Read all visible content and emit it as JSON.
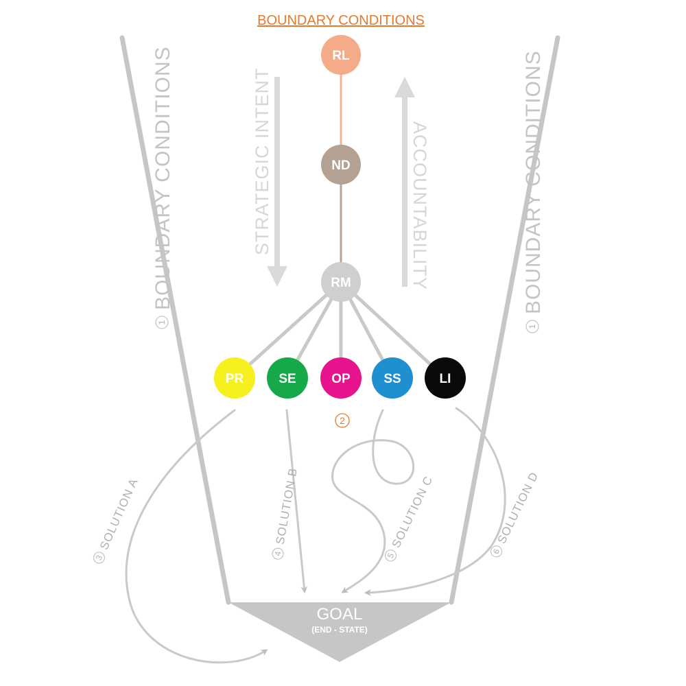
{
  "title": "BOUNDARY CONDITIONS",
  "side_labels": {
    "left": {
      "number": "1",
      "text": "BOUNDARY CONDITIONS"
    },
    "right": {
      "number": "1",
      "text": "BOUNDARY CONDITIONS"
    }
  },
  "arrows": {
    "down": "STRATEGIC INTENT",
    "up": "ACCOUNTABILITY"
  },
  "hierarchy": [
    {
      "label": "RL",
      "color": "#f4ab88"
    },
    {
      "label": "ND",
      "color": "#b3a193"
    },
    {
      "label": "RM",
      "color": "#cfcfcf"
    }
  ],
  "connectors": {
    "rl_nd": "#f2b394",
    "nd_rm": "#b5a596",
    "rm_units": "#c9c9c9"
  },
  "units": [
    {
      "label": "PR",
      "color": "#f5f01e"
    },
    {
      "label": "SE",
      "color": "#17a84a"
    },
    {
      "label": "OP",
      "color": "#e6138d"
    },
    {
      "label": "SS",
      "color": "#1f8fd0"
    },
    {
      "label": "LI",
      "color": "#0a0a0a"
    }
  ],
  "units_marker": "2",
  "solutions": [
    {
      "number": "3",
      "label": "SOLUTION A"
    },
    {
      "number": "4",
      "label": "SOLUTION B"
    },
    {
      "number": "5",
      "label": "SOLUTION C"
    },
    {
      "number": "6",
      "label": "SOLUTION D"
    }
  ],
  "goal": {
    "title": "GOAL",
    "subtitle": "(END - STATE)"
  },
  "colors": {
    "accent": "#e8782a",
    "funnel": "#c6c6c6"
  }
}
